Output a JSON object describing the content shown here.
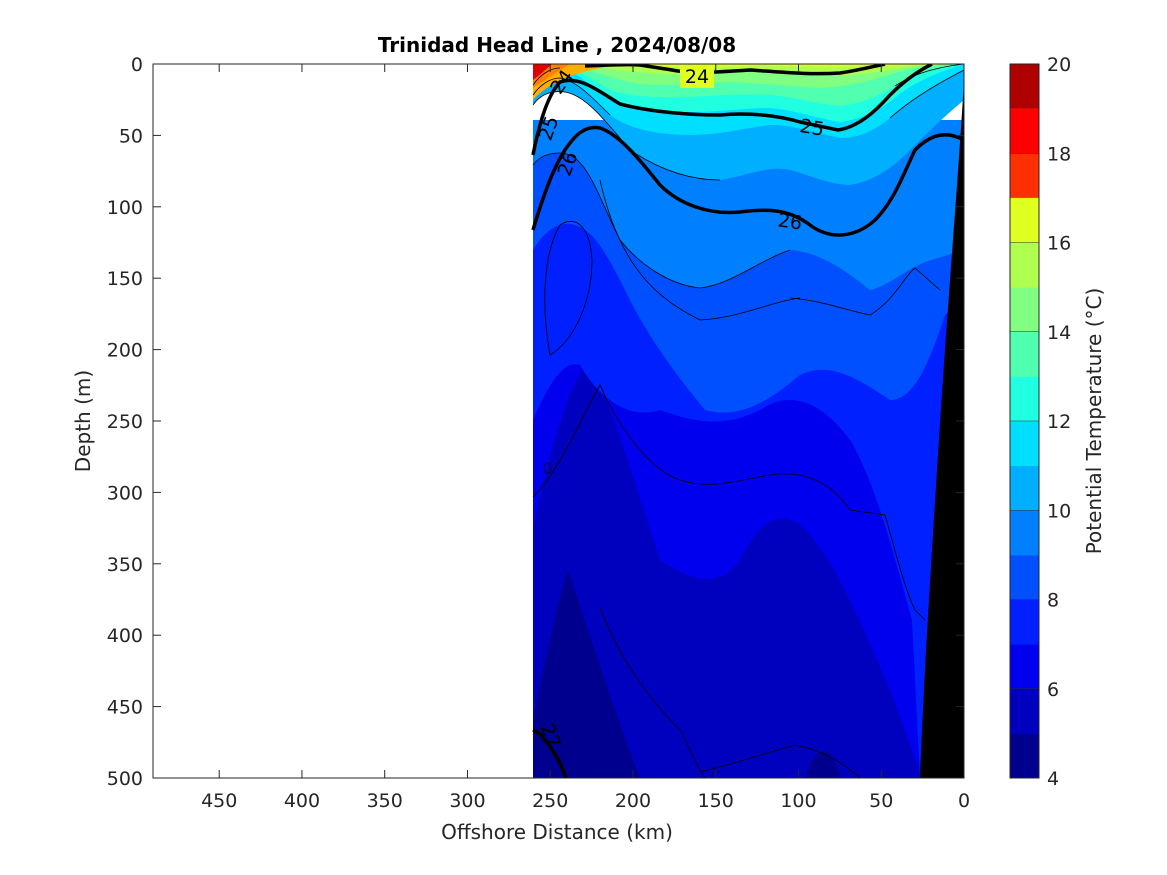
{
  "chart_data": {
    "type": "contour",
    "title": "Trinidad Head Line , 2024/08/08",
    "xlabel": "Offshore Distance (km)",
    "ylabel": "Depth (m)",
    "xlim": [
      490,
      0
    ],
    "ylim": [
      0,
      500
    ],
    "x_reversed": true,
    "y_reversed": true,
    "x_ticks": [
      "450",
      "400",
      "350",
      "300",
      "250",
      "200",
      "150",
      "100",
      "50",
      "0"
    ],
    "y_ticks": [
      "0",
      "50",
      "100",
      "150",
      "200",
      "250",
      "300",
      "350",
      "400",
      "450",
      "500"
    ],
    "colorbar": {
      "label": "Potential Temperature (°C)",
      "range": [
        4,
        20
      ],
      "step": 1,
      "tick_labels": [
        "4",
        "6",
        "8",
        "10",
        "12",
        "14",
        "16",
        "18",
        "20"
      ],
      "colors": [
        "#00008f",
        "#0000bf",
        "#0000ef",
        "#0020ff",
        "#0050ff",
        "#0080ff",
        "#00afff",
        "#00dfff",
        "#20ffdf",
        "#50ffaf",
        "#80ff80",
        "#afff50",
        "#dfff20",
        "#ffdf00",
        "#ffaf00",
        "#ff8000"
      ]
    },
    "density_contour_labels": [
      {
        "text": "24",
        "x": 158,
        "depth": 7
      },
      {
        "text": "24",
        "x": 248,
        "depth": 10
      },
      {
        "text": "25",
        "x": 92,
        "depth": 44
      },
      {
        "text": "25",
        "x": 252,
        "depth": 43
      },
      {
        "text": "26",
        "x": 105,
        "depth": 110
      },
      {
        "text": "26",
        "x": 243,
        "depth": 70
      },
      {
        "text": "27",
        "x": 250,
        "depth": 475
      }
    ],
    "data_extent_km": [
      0,
      260
    ],
    "bathymetry": "shelf (black) near 0–25 km"
  }
}
